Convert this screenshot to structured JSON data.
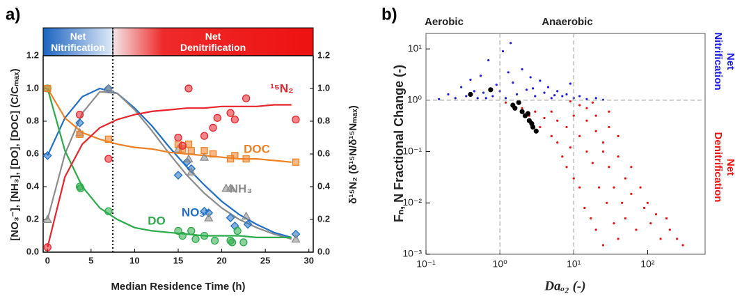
{
  "chart_data": [
    {
      "type": "line",
      "panel_label": "a)",
      "annotations": [
        "Net Nitrification",
        "Net Denitrification"
      ],
      "divider_x": 7.5,
      "xlabel": "Median Residence Time (h)",
      "ylabel": "[NO₃⁻], [NH₃], [DO], [DOC]  (C/Cₘₐₓ)",
      "y2label": "δ¹⁵N₂ (δ¹⁵N/δ¹⁵Nₘₐₓ)",
      "xlim": [
        -0.5,
        30.5
      ],
      "xticks": [
        0,
        5,
        10,
        15,
        20,
        25,
        30
      ],
      "ylim": [
        0,
        1.2
      ],
      "yticks": [
        {
          "value": 0,
          "label": "0.0"
        },
        0.2,
        0.4,
        0.6,
        0.8,
        {
          "value": 1,
          "label": "1.0"
        },
        1.2
      ],
      "y2lim": [
        0,
        1.2
      ],
      "y2ticks": [
        {
          "value": 0,
          "label": "0.0"
        },
        0.2,
        0.4,
        0.6,
        0.8,
        {
          "value": 1,
          "label": "1.0"
        },
        1.2
      ],
      "fit_x": [
        0,
        2,
        4,
        6,
        8,
        10,
        12,
        14,
        16,
        18,
        20,
        22,
        24,
        26,
        28
      ],
      "series": [
        {
          "name": "NO₃⁻",
          "color": "#1f6fc5",
          "marker": "diamond",
          "x": [
            0,
            3.7,
            7,
            15,
            16,
            16.5,
            18,
            18.5,
            21,
            21.5,
            23,
            28.5
          ],
          "values": [
            0.59,
            0.79,
            1.0,
            0.47,
            0.55,
            0.51,
            0.25,
            0.24,
            0.21,
            0.16,
            0.17,
            0.11
          ],
          "fit": [
            0.59,
            0.82,
            0.95,
            1.0,
            0.97,
            0.88,
            0.77,
            0.64,
            0.52,
            0.41,
            0.31,
            0.23,
            0.17,
            0.12,
            0.09
          ]
        },
        {
          "name": "NH₃",
          "color": "#8c8c8c",
          "marker": "triangle",
          "x": [
            0,
            3.7,
            7,
            15,
            16.2,
            16.5,
            18,
            18.5,
            20.5,
            21,
            22.8,
            28.5
          ],
          "values": [
            0.2,
            0.73,
            1.0,
            0.63,
            0.57,
            0.49,
            0.58,
            0.21,
            0.39,
            0.39,
            0.22,
            0.08
          ],
          "fit": [
            0.2,
            0.6,
            0.85,
            0.98,
            0.97,
            0.87,
            0.74,
            0.6,
            0.47,
            0.36,
            0.27,
            0.2,
            0.15,
            0.11,
            0.08
          ]
        },
        {
          "name": "DO",
          "color": "#2aab4a",
          "marker": "circle",
          "x": [
            0,
            3.7,
            3.8,
            7,
            15,
            15.5,
            16.5,
            17,
            18,
            19.2,
            21,
            21.2,
            21.8,
            22.5
          ],
          "values": [
            1.0,
            0.4,
            0.39,
            0.25,
            0.13,
            0.1,
            0.13,
            0.08,
            0.1,
            0.07,
            0.07,
            0.06,
            0.13,
            0.06
          ],
          "fit": [
            1.0,
            0.62,
            0.4,
            0.27,
            0.2,
            0.15,
            0.13,
            0.12,
            0.11,
            0.1,
            0.1,
            0.1,
            0.09,
            0.09,
            0.09
          ]
        },
        {
          "name": "DOC",
          "color": "#f08024",
          "marker": "square",
          "x": [
            0,
            3.7,
            7,
            15,
            15.5,
            16.2,
            16.5,
            18,
            19,
            21,
            21.5,
            22.8,
            28.5
          ],
          "values": [
            1.0,
            0.72,
            0.69,
            0.66,
            0.63,
            0.66,
            0.62,
            0.62,
            0.6,
            0.57,
            0.59,
            0.57,
            0.55
          ],
          "fit": [
            1.0,
            0.82,
            0.73,
            0.69,
            0.66,
            0.64,
            0.63,
            0.61,
            0.6,
            0.59,
            0.58,
            0.57,
            0.57,
            0.56,
            0.55
          ]
        },
        {
          "name": "¹⁵N₂",
          "color": "#e8232a",
          "marker": "circle",
          "axis": "y2",
          "x": [
            0,
            3.7,
            7,
            15,
            15.5,
            16.2,
            18,
            19,
            19.5,
            21,
            21.5,
            22.8,
            28.5
          ],
          "values": [
            0.03,
            0.84,
            0.57,
            0.7,
            0.65,
            1.0,
            0.71,
            0.76,
            0.82,
            0.85,
            0.81,
            0.94,
            0.81
          ],
          "fit": [
            0.03,
            0.46,
            0.66,
            0.76,
            0.81,
            0.84,
            0.86,
            0.87,
            0.88,
            0.88,
            0.89,
            0.89,
            0.89,
            0.9,
            0.9
          ]
        }
      ]
    },
    {
      "type": "scatter",
      "panel_label": "b)",
      "log_x": true,
      "log_y": true,
      "annotations": [
        "Aerobic",
        "Anaerobic"
      ],
      "xlabel": "Daₒ₂ (-)",
      "ylabel": "Fₙ, N Fractional Change (-)",
      "xlim": [
        0.1,
        600
      ],
      "xticks": [
        {
          "value": 0.1,
          "label": "10⁻¹"
        },
        {
          "value": 1,
          "label": "10⁰"
        },
        {
          "value": 10,
          "label": "10¹"
        },
        {
          "value": 100,
          "label": "10²"
        }
      ],
      "ylim": [
        0.001,
        20
      ],
      "yticks": [
        {
          "value": 0.001,
          "label": "10⁻³"
        },
        {
          "value": 0.01,
          "label": "10⁻²"
        },
        {
          "value": 0.1,
          "label": "10⁻¹"
        },
        {
          "value": 1,
          "label": "10⁰"
        },
        {
          "value": 10,
          "label": "10¹"
        }
      ],
      "ref_x": [
        1,
        10
      ],
      "ref_y": [
        1
      ],
      "series": [
        {
          "name": "Net Nitrification",
          "color": "#1a1ae6",
          "x": [
            0.15,
            0.2,
            0.25,
            0.3,
            0.35,
            0.4,
            0.5,
            0.55,
            0.6,
            0.7,
            0.8,
            0.9,
            1.0,
            1.1,
            1.2,
            1.3,
            1.5,
            1.7,
            2,
            2.3,
            2.6,
            3,
            3.5,
            4,
            4.5,
            5,
            6,
            7,
            8,
            10,
            12,
            15,
            20,
            25,
            0.45,
            0.65,
            1.4,
            2.8,
            5.5,
            9
          ],
          "values": [
            1.05,
            1.3,
            1.1,
            1.8,
            1.2,
            2.5,
            1.1,
            3,
            1.4,
            6,
            1.2,
            2,
            1.5,
            9,
            1.1,
            3.5,
            2.2,
            1.3,
            4,
            1.6,
            2.8,
            1.2,
            2.4,
            1.4,
            1.8,
            1.1,
            1.5,
            1.2,
            1.3,
            1.1,
            1.2,
            1.05,
            1.1,
            1.02,
            1.5,
            1.1,
            13,
            1.7,
            1.25,
            2.1
          ]
        },
        {
          "name": "Net Denitrification",
          "color": "#ee1111",
          "x": [
            1.2,
            1.5,
            2,
            2.5,
            3,
            3.5,
            4,
            5,
            5,
            6,
            6,
            7,
            8,
            8,
            9,
            10,
            10,
            12,
            12,
            14,
            15,
            15,
            17,
            18,
            20,
            20,
            22,
            25,
            25,
            28,
            30,
            30,
            35,
            35,
            40,
            40,
            45,
            50,
            50,
            60,
            60,
            70,
            80,
            90,
            100,
            110,
            130,
            150,
            180,
            200,
            250,
            300,
            15,
            20,
            25,
            30,
            40,
            18,
            12,
            9
          ],
          "values": [
            0.9,
            0.8,
            0.7,
            0.5,
            0.6,
            0.3,
            0.45,
            0.2,
            0.6,
            0.15,
            0.4,
            0.08,
            0.3,
            0.05,
            0.12,
            0.03,
            0.5,
            0.02,
            0.2,
            0.008,
            0.1,
            0.4,
            0.005,
            0.06,
            0.003,
            0.25,
            0.02,
            0.0015,
            0.1,
            0.01,
            0.05,
            0.3,
            0.004,
            0.02,
            0.08,
            0.002,
            0.01,
            0.03,
            0.005,
            0.015,
            0.05,
            0.003,
            0.02,
            0.008,
            0.01,
            0.004,
            0.006,
            0.002,
            0.005,
            0.003,
            0.002,
            0.0015,
            0.7,
            0.5,
            0.15,
            0.6,
            0.2,
            0.9,
            0.8,
            0.95
          ]
        },
        {
          "color": "#000000",
          "x": [
            0.4,
            0.75,
            1.5,
            1.6,
            1.8,
            2.0,
            2.2,
            2.5,
            2.7,
            2.8,
            3.1,
            2.4
          ],
          "values": [
            1.3,
            1.6,
            0.8,
            0.7,
            0.9,
            0.6,
            0.5,
            0.4,
            0.35,
            0.3,
            0.25,
            0.55
          ]
        }
      ]
    }
  ]
}
